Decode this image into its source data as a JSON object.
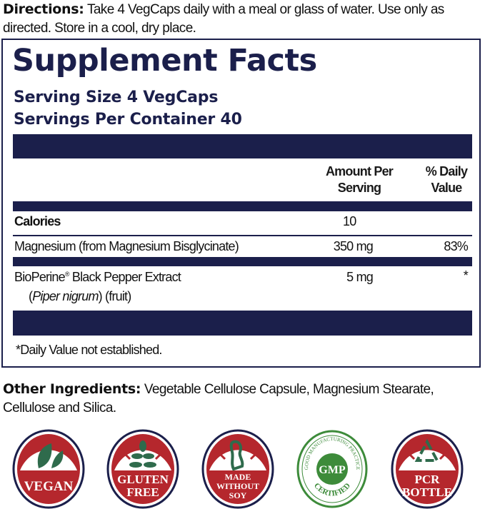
{
  "directions": {
    "label": "Directions:",
    "text": "Take 4 VegCaps daily with a meal or glass of water. Use only as directed. Store in a cool, dry place."
  },
  "facts": {
    "title": "Supplement Facts",
    "serving_size": "Serving Size 4 VegCaps",
    "servings_per_container": "Servings Per Container 40",
    "header": {
      "amount": "Amount Per Serving",
      "dv": "% Daily Value"
    },
    "rows": [
      {
        "name": "Calories",
        "amount": "10",
        "dv": ""
      },
      {
        "name": "Magnesium (from Magnesium Bisglycinate)",
        "amount": "350 mg",
        "dv": "83%"
      },
      {
        "name": "BioPerine",
        "reg": "®",
        "name_rest": " Black Pepper Extract",
        "sub_italic": "Piper nigrum",
        "sub_rest": " (fruit)",
        "amount": "5 mg",
        "dv": "*"
      }
    ],
    "footnote": "*Daily Value not established."
  },
  "other": {
    "label": "Other Ingredients:",
    "text": "Vegetable Cellulose Capsule, Magnesium Stearate, Cellulose and Silica."
  },
  "badges": [
    {
      "lines": [
        "VEGAN"
      ],
      "icon": "leaf-icon"
    },
    {
      "lines": [
        "GLUTEN",
        "FREE"
      ],
      "icon": "wheat-icon"
    },
    {
      "lines": [
        "MADE",
        "WITHOUT",
        "SOY"
      ],
      "icon": "soybean-icon"
    },
    {
      "center": "GMP",
      "top_arc": "GOOD MANUFACTURING PRACTICE",
      "bottom_arc": "CERTIFIED",
      "icon": "gmp-seal-icon"
    },
    {
      "lines": [
        "PCR",
        "BOTTLE"
      ],
      "icon": "recycle-icon"
    }
  ],
  "colors": {
    "navy": "#1b1f4b",
    "red": "#b5272d",
    "green": "#2f6b4c",
    "gmp_green": "#3d8b3a"
  }
}
